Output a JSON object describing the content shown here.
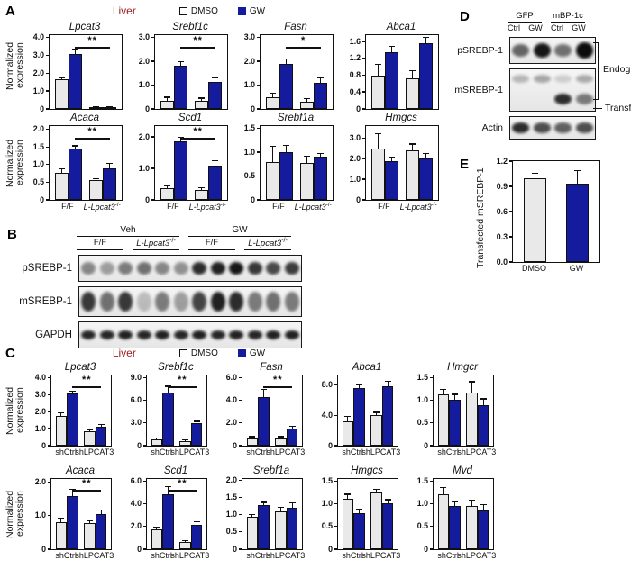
{
  "colors": {
    "gw_blue": "#141b9c",
    "dmso_gray": "#e9e9e9",
    "title_red": "#9b1b1e"
  },
  "legend": {
    "dmso": "DMSO",
    "gw": "GW"
  },
  "panel_a": {
    "label": "A",
    "title": "Liver",
    "ylabel": "Normalized expression"
  },
  "panel_b": {
    "label": "B",
    "group_headers": [
      {
        "text": "Veh",
        "span": 6
      },
      {
        "text": "GW",
        "span": 6
      }
    ],
    "subheaders": [
      {
        "text": "F/F",
        "span": 3
      },
      {
        "text": "L-Lpcat3-/-",
        "span": 3
      },
      {
        "text": "F/F",
        "span": 3
      },
      {
        "text": "L-Lpcat3-/-",
        "span": 3
      }
    ],
    "rows": [
      {
        "label": "pSREBP-1",
        "bands": [
          0.45,
          0.35,
          0.5,
          0.55,
          0.45,
          0.4,
          0.85,
          0.9,
          0.95,
          0.8,
          0.72,
          0.78
        ]
      },
      {
        "label": "mSREBP-1",
        "bands": [
          0.8,
          0.55,
          0.8,
          0.22,
          0.5,
          0.35,
          0.75,
          0.9,
          0.85,
          0.5,
          0.55,
          0.5
        ]
      },
      {
        "label": "GAPDH",
        "bands": [
          0.88,
          0.88,
          0.9,
          0.88,
          0.9,
          0.88,
          0.9,
          0.88,
          0.9,
          0.88,
          0.9,
          0.9
        ]
      }
    ]
  },
  "panel_c": {
    "label": "C",
    "title": "Liver",
    "ylabel": "Normalized expression"
  },
  "panel_d": {
    "label": "D",
    "group_headers": [
      {
        "text": "GFP",
        "span": 2
      },
      {
        "text": "mBP-1c",
        "span": 2
      }
    ],
    "lane_labels": [
      "Ctrl",
      "GW",
      "Ctrl",
      "GW"
    ],
    "rows": [
      {
        "label": "pSREBP-1",
        "bands": [
          0.6,
          0.95,
          0.55,
          1.0
        ]
      },
      {
        "label": "mSREBP-1",
        "bands_top": [
          0.25,
          0.32,
          0.15,
          0.3
        ],
        "bands_bottom": [
          0,
          0,
          0.85,
          0.5
        ]
      },
      {
        "label": "Actin",
        "bands": [
          0.85,
          0.7,
          0.62,
          0.7
        ]
      }
    ],
    "annotations": {
      "endog": "Endog.",
      "transf": "Transf."
    }
  },
  "panel_e": {
    "label": "E",
    "ylabel": "Transfected mSREBP-1"
  },
  "chart_data": [
    {
      "type": "bar",
      "row": "A1",
      "title": "Lpcat3",
      "ticks": [
        "0",
        "1.0",
        "2.0",
        "3.0",
        "4.0"
      ],
      "tick_vals": [
        0,
        1,
        2,
        3,
        4
      ],
      "ymax": 4.15,
      "categories": [
        "F/F",
        "L-Lpcat3-/-"
      ],
      "show_cats": false,
      "series": [
        {
          "name": "DMSO",
          "values": [
            1.65,
            0.05
          ],
          "errors": [
            0.05,
            0.02
          ]
        },
        {
          "name": "GW",
          "values": [
            3.1,
            0.05
          ],
          "errors": [
            0.22,
            0.02
          ]
        }
      ],
      "sig": {
        "label": "**",
        "bars": [
          1,
          3
        ]
      }
    },
    {
      "type": "bar",
      "row": "A1",
      "title": "Srebf1c",
      "ticks": [
        "0",
        "1.0",
        "2.0",
        "3.0"
      ],
      "tick_vals": [
        0,
        1,
        2,
        3
      ],
      "ymax": 3.1,
      "categories": [
        "F/F",
        "L-Lpcat3-/-"
      ],
      "show_cats": false,
      "series": [
        {
          "name": "DMSO",
          "values": [
            0.35,
            0.35
          ],
          "errors": [
            0.12,
            0.08
          ]
        },
        {
          "name": "GW",
          "values": [
            1.8,
            1.15
          ],
          "errors": [
            0.15,
            0.12
          ]
        }
      ],
      "sig": {
        "label": "**",
        "bars": [
          1,
          3
        ]
      }
    },
    {
      "type": "bar",
      "row": "A1",
      "title": "Fasn",
      "ticks": [
        "0",
        "1.0",
        "2.0",
        "3.0"
      ],
      "tick_vals": [
        0,
        1,
        2,
        3
      ],
      "ymax": 3.1,
      "categories": [
        "F/F",
        "L-Lpcat3-/-"
      ],
      "show_cats": false,
      "series": [
        {
          "name": "DMSO",
          "values": [
            0.5,
            0.3
          ],
          "errors": [
            0.15,
            0.12
          ]
        },
        {
          "name": "GW",
          "values": [
            1.9,
            1.1
          ],
          "errors": [
            0.18,
            0.2
          ]
        }
      ],
      "sig": {
        "label": "*",
        "bars": [
          1,
          3
        ]
      }
    },
    {
      "type": "bar",
      "row": "A1",
      "title": "Abca1",
      "ticks": [
        "0",
        "0.4",
        "0.8",
        "1.2",
        "1.6"
      ],
      "tick_vals": [
        0,
        0.4,
        0.8,
        1.2,
        1.6
      ],
      "ymax": 1.75,
      "categories": [
        "F/F",
        "L-Lpcat3-/-"
      ],
      "show_cats": false,
      "series": [
        {
          "name": "DMSO",
          "values": [
            0.8,
            0.72
          ],
          "errors": [
            0.25,
            0.18
          ]
        },
        {
          "name": "GW",
          "values": [
            1.35,
            1.55
          ],
          "errors": [
            0.12,
            0.13
          ]
        }
      ]
    },
    {
      "type": "bar",
      "row": "A2",
      "title": "Acaca",
      "ticks": [
        "0",
        "0.5",
        "1.0",
        "1.5",
        "2.0"
      ],
      "tick_vals": [
        0,
        0.5,
        1,
        1.5,
        2
      ],
      "ymax": 2.1,
      "categories": [
        "F/F",
        "L-Lpcat3-/-"
      ],
      "show_cats": true,
      "series": [
        {
          "name": "DMSO",
          "values": [
            0.78,
            0.57
          ],
          "errors": [
            0.08,
            0.02
          ]
        },
        {
          "name": "GW",
          "values": [
            1.45,
            0.9
          ],
          "errors": [
            0.07,
            0.12
          ]
        }
      ],
      "sig": {
        "label": "**",
        "bars": [
          1,
          3
        ]
      }
    },
    {
      "type": "bar",
      "row": "A2",
      "title": "Scd1",
      "ticks": [
        "0",
        "1.0",
        "2.0"
      ],
      "tick_vals": [
        0,
        1,
        2
      ],
      "ymax": 2.35,
      "categories": [
        "F/F",
        "L-Lpcat3-/-"
      ],
      "show_cats": true,
      "series": [
        {
          "name": "DMSO",
          "values": [
            0.38,
            0.33
          ],
          "errors": [
            0.06,
            0.05
          ]
        },
        {
          "name": "GW",
          "values": [
            1.85,
            1.08
          ],
          "errors": [
            0.12,
            0.15
          ]
        }
      ],
      "sig": {
        "label": "**",
        "bars": [
          1,
          3
        ]
      }
    },
    {
      "type": "bar",
      "row": "A2",
      "title": "Srebf1a",
      "ticks": [
        "0",
        "0.5",
        "1.0",
        "1.5"
      ],
      "tick_vals": [
        0,
        0.5,
        1,
        1.5
      ],
      "ymax": 1.55,
      "categories": [
        "F/F",
        "L-Lpcat3-/-"
      ],
      "show_cats": true,
      "series": [
        {
          "name": "DMSO",
          "values": [
            0.8,
            0.78
          ],
          "errors": [
            0.32,
            0.12
          ]
        },
        {
          "name": "GW",
          "values": [
            1.0,
            0.9
          ],
          "errors": [
            0.13,
            0.07
          ]
        }
      ]
    },
    {
      "type": "bar",
      "row": "A2",
      "title": "Hmgcs",
      "ticks": [
        "0",
        "1.0",
        "2.0",
        "3.0"
      ],
      "tick_vals": [
        0,
        1,
        2,
        3
      ],
      "ymax": 3.6,
      "categories": [
        "F/F",
        "L-Lpcat3-/-"
      ],
      "show_cats": true,
      "series": [
        {
          "name": "DMSO",
          "values": [
            2.5,
            2.4
          ],
          "errors": [
            0.7,
            0.3
          ]
        },
        {
          "name": "GW",
          "values": [
            1.9,
            2.0
          ],
          "errors": [
            0.15,
            0.25
          ]
        }
      ]
    },
    {
      "type": "bar",
      "row": "C1",
      "title": "Lpcat3",
      "ticks": [
        "0",
        "1.0",
        "2.0",
        "3.0",
        "4.0"
      ],
      "tick_vals": [
        0,
        1,
        2,
        3,
        4
      ],
      "ymax": 4.15,
      "categories": [
        "shCtrl",
        "shLPCAT3"
      ],
      "show_cats": true,
      "series": [
        {
          "name": "DMSO",
          "values": [
            1.75,
            0.85
          ],
          "errors": [
            0.15,
            0.07
          ]
        },
        {
          "name": "GW",
          "values": [
            3.1,
            1.1
          ],
          "errors": [
            0.1,
            0.12
          ]
        }
      ],
      "sig": {
        "label": "**",
        "bars": [
          1,
          3
        ]
      }
    },
    {
      "type": "bar",
      "row": "C1",
      "title": "Srebf1c",
      "ticks": [
        "0",
        "3.0",
        "6.0",
        "9.0"
      ],
      "tick_vals": [
        0,
        3,
        6,
        9
      ],
      "ymax": 9.3,
      "categories": [
        "shCtrl",
        "shLPCAT3"
      ],
      "show_cats": true,
      "series": [
        {
          "name": "DMSO",
          "values": [
            0.8,
            0.6
          ],
          "errors": [
            0.15,
            0.1
          ]
        },
        {
          "name": "GW",
          "values": [
            7.0,
            3.0
          ],
          "errors": [
            0.8,
            0.15
          ]
        }
      ],
      "sig": {
        "label": "**",
        "bars": [
          1,
          3
        ]
      }
    },
    {
      "type": "bar",
      "row": "C1",
      "title": "Fasn",
      "ticks": [
        "0",
        "2.0",
        "4.0",
        "6.0"
      ],
      "tick_vals": [
        0,
        2,
        4,
        6
      ],
      "ymax": 6.2,
      "categories": [
        "shCtrl",
        "shLPCAT3"
      ],
      "show_cats": true,
      "series": [
        {
          "name": "DMSO",
          "values": [
            0.65,
            0.65
          ],
          "errors": [
            0.1,
            0.1
          ]
        },
        {
          "name": "GW",
          "values": [
            4.3,
            1.5
          ],
          "errors": [
            0.6,
            0.15
          ]
        }
      ],
      "sig": {
        "label": "**",
        "bars": [
          1,
          3
        ]
      }
    },
    {
      "type": "bar",
      "row": "C1",
      "title": "Abca1",
      "ticks": [
        "0",
        "4.0",
        "8.0"
      ],
      "tick_vals": [
        0,
        4,
        8
      ],
      "ymax": 9.3,
      "categories": [
        "shCtrl",
        "shLPCAT3"
      ],
      "show_cats": true,
      "series": [
        {
          "name": "DMSO",
          "values": [
            3.2,
            4.0
          ],
          "errors": [
            0.6,
            0.35
          ]
        },
        {
          "name": "GW",
          "values": [
            7.6,
            7.9
          ],
          "errors": [
            0.4,
            0.6
          ]
        }
      ]
    },
    {
      "type": "bar",
      "row": "C1",
      "title": "Hmgcr",
      "ticks": [
        "0",
        "0.5",
        "1.0",
        "1.5"
      ],
      "tick_vals": [
        0,
        0.5,
        1,
        1.5
      ],
      "ymax": 1.55,
      "categories": [
        "shCtrl",
        "shLPCAT3"
      ],
      "show_cats": true,
      "series": [
        {
          "name": "DMSO",
          "values": [
            1.13,
            1.18
          ],
          "errors": [
            0.1,
            0.22
          ]
        },
        {
          "name": "GW",
          "values": [
            1.02,
            0.9
          ],
          "errors": [
            0.1,
            0.12
          ]
        }
      ]
    },
    {
      "type": "bar",
      "row": "C2",
      "title": "Acaca",
      "ticks": [
        "0",
        "1.0",
        "2.0"
      ],
      "tick_vals": [
        0,
        1,
        2
      ],
      "ymax": 2.1,
      "categories": [
        "shCtrl",
        "shLPCAT3"
      ],
      "show_cats": true,
      "series": [
        {
          "name": "DMSO",
          "values": [
            0.82,
            0.78
          ],
          "errors": [
            0.08,
            0.05
          ]
        },
        {
          "name": "GW",
          "values": [
            1.6,
            1.05
          ],
          "errors": [
            0.18,
            0.1
          ]
        }
      ],
      "sig": {
        "label": "**",
        "bars": [
          1,
          3
        ]
      }
    },
    {
      "type": "bar",
      "row": "C2",
      "title": "Scd1",
      "ticks": [
        "0",
        "2.0",
        "4.0",
        "6.0"
      ],
      "tick_vals": [
        0,
        2,
        4,
        6
      ],
      "ymax": 6.2,
      "categories": [
        "shCtrl",
        "shLPCAT3"
      ],
      "show_cats": true,
      "series": [
        {
          "name": "DMSO",
          "values": [
            1.75,
            0.65
          ],
          "errors": [
            0.15,
            0.07
          ]
        },
        {
          "name": "GW",
          "values": [
            4.85,
            2.15
          ],
          "errors": [
            0.65,
            0.25
          ]
        }
      ],
      "sig": {
        "label": "**",
        "bars": [
          1,
          3
        ]
      }
    },
    {
      "type": "bar",
      "row": "C2",
      "title": "Srebf1a",
      "ticks": [
        "0",
        "0.5",
        "1.0",
        "1.5",
        "2.0"
      ],
      "tick_vals": [
        0,
        0.5,
        1,
        1.5,
        2
      ],
      "ymax": 2.05,
      "categories": [
        "shCtrl",
        "shLPCAT3"
      ],
      "show_cats": true,
      "series": [
        {
          "name": "DMSO",
          "values": [
            0.95,
            1.1
          ],
          "errors": [
            0.04,
            0.1
          ]
        },
        {
          "name": "GW",
          "values": [
            1.3,
            1.22
          ],
          "errors": [
            0.05,
            0.12
          ]
        }
      ]
    },
    {
      "type": "bar",
      "row": "C2",
      "title": "Hmgcs",
      "ticks": [
        "0",
        "0.5",
        "1.0",
        "1.5"
      ],
      "tick_vals": [
        0,
        0.5,
        1,
        1.5
      ],
      "ymax": 1.55,
      "categories": [
        "shCtrl",
        "shLPCAT3"
      ],
      "show_cats": true,
      "series": [
        {
          "name": "DMSO",
          "values": [
            1.12,
            1.25
          ],
          "errors": [
            0.08,
            0.06
          ]
        },
        {
          "name": "GW",
          "values": [
            0.8,
            1.02
          ],
          "errors": [
            0.07,
            0.06
          ]
        }
      ]
    },
    {
      "type": "bar",
      "row": "C2",
      "title": "Mvd",
      "ticks": [
        "0",
        "0.5",
        "1.0",
        "1.5"
      ],
      "tick_vals": [
        0,
        0.5,
        1,
        1.5
      ],
      "ymax": 1.55,
      "categories": [
        "shCtrl",
        "shLPCAT3"
      ],
      "show_cats": true,
      "series": [
        {
          "name": "DMSO",
          "values": [
            1.22,
            0.95
          ],
          "errors": [
            0.13,
            0.12
          ]
        },
        {
          "name": "GW",
          "values": [
            0.95,
            0.85
          ],
          "errors": [
            0.08,
            0.13
          ]
        }
      ]
    },
    {
      "type": "bar",
      "row": "E",
      "title": "",
      "ticks": [
        "0.0",
        "0.3",
        "0.6",
        "0.9",
        "1.2"
      ],
      "tick_vals": [
        0,
        0.3,
        0.6,
        0.9,
        1.2
      ],
      "ymax": 1.2,
      "categories": [
        "DMSO",
        "GW"
      ],
      "show_cats": true,
      "values": [
        1.0,
        0.93
      ],
      "errors": [
        0.05,
        0.15
      ],
      "ylabel": "Transfected mSREBP-1"
    }
  ]
}
